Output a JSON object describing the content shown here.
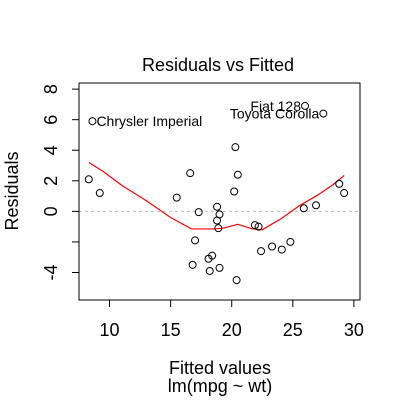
{
  "chart_data": {
    "type": "scatter",
    "title": "Residuals vs Fitted",
    "xlabel": "Fitted values",
    "subtitle": "lm(mpg ~ wt)",
    "ylabel": "Residuals",
    "xlim": [
      7.5,
      30.5
    ],
    "ylim": [
      -5.8,
      8.4
    ],
    "x_ticks": [
      10,
      15,
      20,
      25,
      30
    ],
    "y_ticks": [
      -4,
      -2,
      0,
      2,
      4,
      6,
      8
    ],
    "y_tick_labels": [
      "-4",
      "",
      "0",
      "2",
      "4",
      "6",
      "8"
    ],
    "reference_line": 0,
    "colors": {
      "points": "#000000",
      "smoother": "#ff0000",
      "reference": "#bdbdbd"
    },
    "points": [
      {
        "x": 8.3,
        "y": 2.1
      },
      {
        "x": 9.2,
        "y": 1.2
      },
      {
        "x": 8.6,
        "y": 5.9
      },
      {
        "x": 15.5,
        "y": 0.9
      },
      {
        "x": 16.6,
        "y": 2.5
      },
      {
        "x": 16.8,
        "y": -3.5
      },
      {
        "x": 17.0,
        "y": -1.9
      },
      {
        "x": 17.3,
        "y": -0.05
      },
      {
        "x": 18.1,
        "y": -3.1
      },
      {
        "x": 18.2,
        "y": -3.9
      },
      {
        "x": 18.4,
        "y": -2.9
      },
      {
        "x": 18.8,
        "y": 0.3
      },
      {
        "x": 18.8,
        "y": -0.6
      },
      {
        "x": 18.9,
        "y": -1.1
      },
      {
        "x": 19.0,
        "y": -0.2
      },
      {
        "x": 19.0,
        "y": -3.7
      },
      {
        "x": 20.2,
        "y": 1.3
      },
      {
        "x": 20.3,
        "y": 4.2
      },
      {
        "x": 20.5,
        "y": 2.4
      },
      {
        "x": 20.4,
        "y": -4.5
      },
      {
        "x": 21.9,
        "y": -0.9
      },
      {
        "x": 22.2,
        "y": -1.0
      },
      {
        "x": 22.4,
        "y": -2.6
      },
      {
        "x": 23.3,
        "y": -2.3
      },
      {
        "x": 24.1,
        "y": -2.5
      },
      {
        "x": 24.8,
        "y": -2.0
      },
      {
        "x": 25.9,
        "y": 0.2
      },
      {
        "x": 26.9,
        "y": 0.4
      },
      {
        "x": 28.8,
        "y": 1.8
      },
      {
        "x": 29.2,
        "y": 1.2
      },
      {
        "x": 27.5,
        "y": 6.4
      },
      {
        "x": 26.0,
        "y": 6.9
      }
    ],
    "point_labels": [
      {
        "text": "Chrysler Imperial",
        "x": 8.6,
        "y": 5.9
      },
      {
        "text": "Fiat 128",
        "x": 26.0,
        "y": 6.9
      },
      {
        "text": "Toyota Corolla",
        "x": 27.5,
        "y": 6.4
      }
    ],
    "smoother": {
      "x": [
        8.3,
        9.5,
        11.0,
        13.0,
        15.0,
        16.7,
        18.5,
        19.3,
        20.5,
        21.7,
        22.5,
        24.0,
        25.5,
        27.0,
        28.3,
        29.2
      ],
      "y": [
        3.2,
        2.6,
        1.7,
        0.7,
        -0.4,
        -1.15,
        -1.15,
        -1.1,
        -0.85,
        -1.15,
        -1.2,
        -0.5,
        0.35,
        1.05,
        1.75,
        2.35
      ]
    }
  }
}
